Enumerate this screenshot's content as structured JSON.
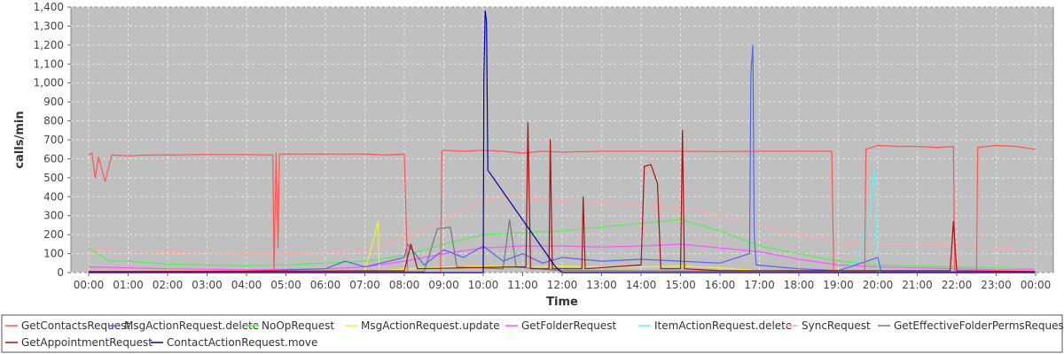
{
  "chart_data": {
    "type": "line",
    "title": "",
    "xlabel": "Time",
    "ylabel": "calls/min",
    "ylim": [
      0,
      1400
    ],
    "xlim": [
      "00:00",
      "24:00"
    ],
    "grid": true,
    "legend_position": "bottom",
    "x_ticks": [
      "00:00",
      "01:00",
      "02:00",
      "03:00",
      "04:00",
      "05:00",
      "06:00",
      "07:00",
      "08:00",
      "09:00",
      "10:00",
      "11:00",
      "12:00",
      "13:00",
      "14:00",
      "15:00",
      "16:00",
      "17:00",
      "18:00",
      "19:00",
      "20:00",
      "21:00",
      "22:00",
      "23:00",
      "00:00"
    ],
    "y_ticks": [
      "0",
      "100",
      "200",
      "300",
      "400",
      "500",
      "600",
      "700",
      "800",
      "900",
      "1,000",
      "1,100",
      "1,200",
      "1,300",
      "1,400"
    ],
    "series": [
      {
        "name": "GetContactsRequest",
        "color": "#ff5555",
        "points": [
          [
            "00:00",
            620
          ],
          [
            "00:05",
            630
          ],
          [
            "00:10",
            500
          ],
          [
            "00:15",
            610
          ],
          [
            "00:25",
            480
          ],
          [
            "00:35",
            620
          ],
          [
            "01:00",
            615
          ],
          [
            "01:30",
            620
          ],
          [
            "02:00",
            620
          ],
          [
            "03:00",
            622
          ],
          [
            "04:00",
            622
          ],
          [
            "04:40",
            620
          ],
          [
            "04:42",
            0
          ],
          [
            "04:45",
            630
          ],
          [
            "04:48",
            130
          ],
          [
            "04:50",
            625
          ],
          [
            "05:00",
            625
          ],
          [
            "06:00",
            625
          ],
          [
            "07:00",
            625
          ],
          [
            "07:30",
            620
          ],
          [
            "08:00",
            625
          ],
          [
            "08:05",
            0
          ],
          [
            "08:55",
            0
          ],
          [
            "08:57",
            640
          ],
          [
            "09:00",
            645
          ],
          [
            "09:30",
            640
          ],
          [
            "10:00",
            645
          ],
          [
            "10:30",
            640
          ],
          [
            "11:00",
            630
          ],
          [
            "11:30",
            640
          ],
          [
            "12:00",
            635
          ],
          [
            "13:00",
            640
          ],
          [
            "14:00",
            640
          ],
          [
            "15:00",
            640
          ],
          [
            "16:00",
            638
          ],
          [
            "17:00",
            640
          ],
          [
            "18:00",
            640
          ],
          [
            "18:50",
            640
          ],
          [
            "18:53",
            0
          ],
          [
            "19:40",
            0
          ],
          [
            "19:42",
            650
          ],
          [
            "20:00",
            670
          ],
          [
            "20:30",
            665
          ],
          [
            "21:00",
            665
          ],
          [
            "21:30",
            660
          ],
          [
            "21:55",
            665
          ],
          [
            "21:57",
            0
          ],
          [
            "22:30",
            0
          ],
          [
            "22:32",
            660
          ],
          [
            "23:00",
            670
          ],
          [
            "23:30",
            665
          ],
          [
            "23:59",
            650
          ]
        ]
      },
      {
        "name": "MsgActionRequest.delete",
        "color": "#5566ee",
        "points": [
          [
            "00:00",
            5
          ],
          [
            "02:00",
            5
          ],
          [
            "04:00",
            8
          ],
          [
            "06:00",
            20
          ],
          [
            "06:30",
            60
          ],
          [
            "07:00",
            30
          ],
          [
            "08:00",
            80
          ],
          [
            "08:05",
            150
          ],
          [
            "08:30",
            40
          ],
          [
            "09:00",
            120
          ],
          [
            "09:30",
            80
          ],
          [
            "10:00",
            140
          ],
          [
            "10:30",
            60
          ],
          [
            "11:00",
            100
          ],
          [
            "11:30",
            50
          ],
          [
            "12:00",
            80
          ],
          [
            "13:00",
            60
          ],
          [
            "14:00",
            70
          ],
          [
            "15:00",
            60
          ],
          [
            "16:00",
            50
          ],
          [
            "16:45",
            100
          ],
          [
            "16:47",
            1050
          ],
          [
            "16:50",
            1200
          ],
          [
            "16:52",
            200
          ],
          [
            "16:55",
            40
          ],
          [
            "18:00",
            20
          ],
          [
            "19:00",
            10
          ],
          [
            "20:00",
            80
          ],
          [
            "20:05",
            5
          ],
          [
            "22:00",
            5
          ],
          [
            "23:59",
            5
          ]
        ]
      },
      {
        "name": "NoOpRequest",
        "color": "#55ee55",
        "points": [
          [
            "00:00",
            130
          ],
          [
            "00:30",
            60
          ],
          [
            "01:00",
            60
          ],
          [
            "02:00",
            45
          ],
          [
            "03:00",
            40
          ],
          [
            "04:00",
            35
          ],
          [
            "05:00",
            40
          ],
          [
            "06:00",
            50
          ],
          [
            "07:00",
            60
          ],
          [
            "08:00",
            90
          ],
          [
            "09:00",
            150
          ],
          [
            "10:00",
            200
          ],
          [
            "11:00",
            210
          ],
          [
            "12:00",
            220
          ],
          [
            "13:00",
            240
          ],
          [
            "14:00",
            260
          ],
          [
            "15:00",
            280
          ],
          [
            "15:30",
            250
          ],
          [
            "16:00",
            220
          ],
          [
            "16:30",
            180
          ],
          [
            "17:00",
            140
          ],
          [
            "18:00",
            100
          ],
          [
            "19:00",
            60
          ],
          [
            "20:00",
            40
          ],
          [
            "21:00",
            35
          ],
          [
            "22:00",
            30
          ],
          [
            "23:00",
            25
          ],
          [
            "23:59",
            20
          ]
        ]
      },
      {
        "name": "MsgActionRequest.update",
        "color": "#eeee44",
        "points": [
          [
            "00:00",
            2
          ],
          [
            "04:00",
            2
          ],
          [
            "07:00",
            5
          ],
          [
            "07:20",
            270
          ],
          [
            "07:22",
            10
          ],
          [
            "09:00",
            30
          ],
          [
            "10:00",
            35
          ],
          [
            "11:00",
            30
          ],
          [
            "12:00",
            35
          ],
          [
            "13:00",
            30
          ],
          [
            "14:00",
            30
          ],
          [
            "15:00",
            35
          ],
          [
            "16:00",
            25
          ],
          [
            "17:00",
            10
          ],
          [
            "20:00",
            5
          ],
          [
            "23:59",
            2
          ]
        ]
      },
      {
        "name": "GetFolderRequest",
        "color": "#ff55ff",
        "points": [
          [
            "00:00",
            30
          ],
          [
            "02:00",
            20
          ],
          [
            "04:00",
            15
          ],
          [
            "06:00",
            20
          ],
          [
            "07:00",
            30
          ],
          [
            "08:00",
            60
          ],
          [
            "09:00",
            100
          ],
          [
            "10:00",
            130
          ],
          [
            "11:00",
            140
          ],
          [
            "12:00",
            140
          ],
          [
            "13:00",
            135
          ],
          [
            "14:00",
            140
          ],
          [
            "15:00",
            150
          ],
          [
            "16:00",
            130
          ],
          [
            "17:00",
            110
          ],
          [
            "18:00",
            70
          ],
          [
            "19:00",
            40
          ],
          [
            "20:00",
            30
          ],
          [
            "21:00",
            25
          ],
          [
            "22:00",
            20
          ],
          [
            "23:00",
            15
          ],
          [
            "23:59",
            15
          ]
        ]
      },
      {
        "name": "ItemActionRequest.delete",
        "color": "#66eeee",
        "points": [
          [
            "19:00",
            0
          ],
          [
            "19:30",
            60
          ],
          [
            "19:45",
            280
          ],
          [
            "19:55",
            540
          ],
          [
            "20:00",
            10
          ],
          [
            "20:05",
            0
          ]
        ]
      },
      {
        "name": "SyncRequest",
        "color": "#ffaaaa",
        "points": [
          [
            "00:00",
            120
          ],
          [
            "01:00",
            115
          ],
          [
            "02:00",
            110
          ],
          [
            "03:00",
            105
          ],
          [
            "04:00",
            100
          ],
          [
            "05:00",
            100
          ],
          [
            "06:00",
            105
          ],
          [
            "07:00",
            120
          ],
          [
            "08:00",
            180
          ],
          [
            "09:00",
            280
          ],
          [
            "10:00",
            380
          ],
          [
            "10:30",
            400
          ],
          [
            "11:00",
            395
          ],
          [
            "12:00",
            380
          ],
          [
            "13:00",
            370
          ],
          [
            "14:00",
            360
          ],
          [
            "15:00",
            340
          ],
          [
            "16:00",
            300
          ],
          [
            "17:00",
            250
          ],
          [
            "18:00",
            200
          ],
          [
            "19:00",
            160
          ],
          [
            "20:00",
            150
          ],
          [
            "21:00",
            150
          ],
          [
            "22:00",
            145
          ],
          [
            "23:00",
            130
          ],
          [
            "23:59",
            120
          ]
        ]
      },
      {
        "name": "GetEffectiveFolderPermsRequest",
        "color": "#777777",
        "points": [
          [
            "00:00",
            2
          ],
          [
            "08:30",
            5
          ],
          [
            "08:50",
            230
          ],
          [
            "09:10",
            240
          ],
          [
            "09:20",
            30
          ],
          [
            "10:30",
            20
          ],
          [
            "10:40",
            280
          ],
          [
            "10:50",
            30
          ],
          [
            "12:00",
            10
          ],
          [
            "23:59",
            3
          ]
        ]
      },
      {
        "name": "GetAppointmentRequest",
        "color": "#aa1111",
        "points": [
          [
            "00:00",
            5
          ],
          [
            "08:00",
            10
          ],
          [
            "08:10",
            150
          ],
          [
            "08:20",
            20
          ],
          [
            "10:40",
            30
          ],
          [
            "11:05",
            30
          ],
          [
            "11:08",
            790
          ],
          [
            "11:12",
            20
          ],
          [
            "11:40",
            20
          ],
          [
            "11:42",
            700
          ],
          [
            "11:45",
            20
          ],
          [
            "12:30",
            20
          ],
          [
            "12:32",
            400
          ],
          [
            "12:35",
            20
          ],
          [
            "14:00",
            40
          ],
          [
            "14:05",
            560
          ],
          [
            "14:15",
            570
          ],
          [
            "14:25",
            470
          ],
          [
            "14:30",
            20
          ],
          [
            "15:00",
            20
          ],
          [
            "15:03",
            750
          ],
          [
            "15:06",
            20
          ],
          [
            "16:00",
            10
          ],
          [
            "21:50",
            10
          ],
          [
            "21:55",
            270
          ],
          [
            "22:00",
            10
          ],
          [
            "23:59",
            5
          ]
        ]
      },
      {
        "name": "ContactActionRequest.move",
        "color": "#0000aa",
        "points": [
          [
            "00:00",
            0
          ],
          [
            "10:00",
            0
          ],
          [
            "10:01",
            1020
          ],
          [
            "10:03",
            1380
          ],
          [
            "10:05",
            1320
          ],
          [
            "10:07",
            540
          ],
          [
            "11:50",
            30
          ],
          [
            "12:00",
            0
          ],
          [
            "23:59",
            0
          ]
        ]
      }
    ]
  }
}
